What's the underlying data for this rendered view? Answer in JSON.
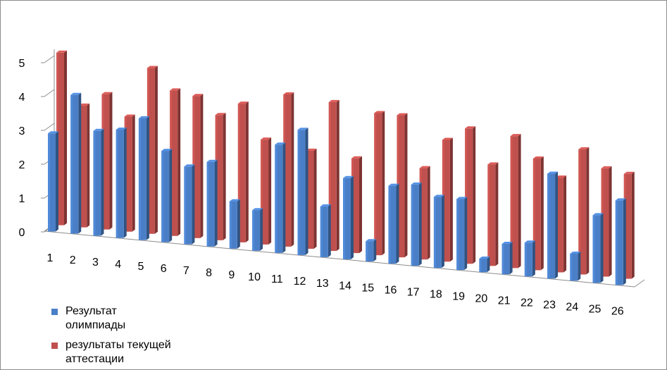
{
  "chart_data": {
    "type": "bar",
    "categories": [
      "1",
      "2",
      "3",
      "4",
      "5",
      "6",
      "7",
      "8",
      "9",
      "10",
      "11",
      "12",
      "13",
      "14",
      "15",
      "16",
      "17",
      "18",
      "19",
      "20",
      "21",
      "22",
      "23",
      "24",
      "25",
      "26"
    ],
    "series": [
      {
        "name": "Результат олимпиады",
        "color": "#4a7fc8",
        "values": [
          2.9,
          4.1,
          3.1,
          3.2,
          3.6,
          2.7,
          2.3,
          2.5,
          1.4,
          1.2,
          3.2,
          3.7,
          1.5,
          2.4,
          0.6,
          2.3,
          2.4,
          2.1,
          2.1,
          0.4,
          0.9,
          1.0,
          3.1,
          0.8,
          2.0,
          2.5
        ]
      },
      {
        "name": "результаты текущей аттестации",
        "color": "#c0504d",
        "values": [
          5.1,
          3.6,
          4.0,
          3.4,
          4.9,
          4.3,
          4.2,
          3.7,
          4.1,
          3.1,
          4.5,
          2.9,
          4.4,
          2.8,
          4.2,
          4.2,
          2.7,
          3.6,
          4.0,
          3.0,
          3.9,
          3.3,
          2.8,
          3.7,
          3.2,
          3.1
        ]
      }
    ],
    "yticks": [
      "0",
      "1",
      "2",
      "3",
      "4",
      "5"
    ],
    "ylim": [
      0,
      5
    ],
    "title": "",
    "xlabel": "",
    "ylabel": "",
    "legend_position": "bottom-left"
  }
}
